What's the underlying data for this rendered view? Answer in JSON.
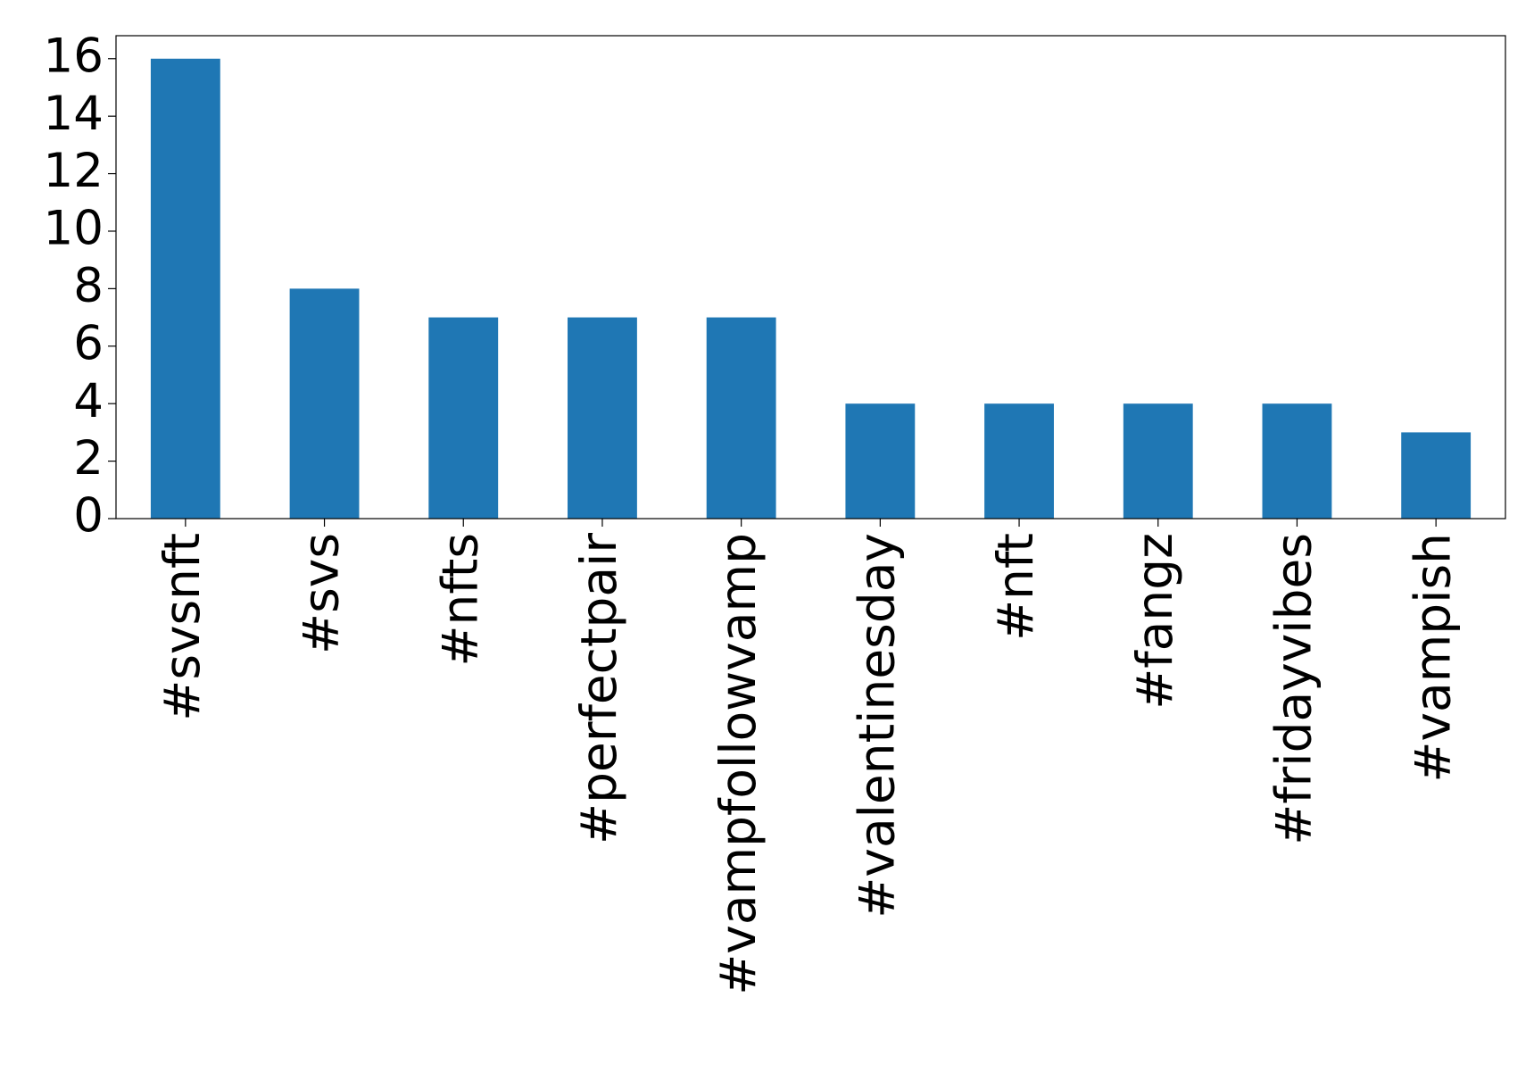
{
  "chart_data": {
    "type": "bar",
    "categories": [
      "#svsnft",
      "#svs",
      "#nfts",
      "#perfectpair",
      "#vampfollowvamp",
      "#valentinesday",
      "#nft",
      "#fangz",
      "#fridayvibes",
      "#vampish"
    ],
    "values": [
      16,
      8,
      7,
      7,
      7,
      4,
      4,
      4,
      4,
      3
    ],
    "color": "#1f77b4",
    "ylim": [
      0,
      16.8
    ],
    "yticks": [
      0,
      2,
      4,
      6,
      8,
      10,
      12,
      14,
      16
    ],
    "grid": false
  }
}
